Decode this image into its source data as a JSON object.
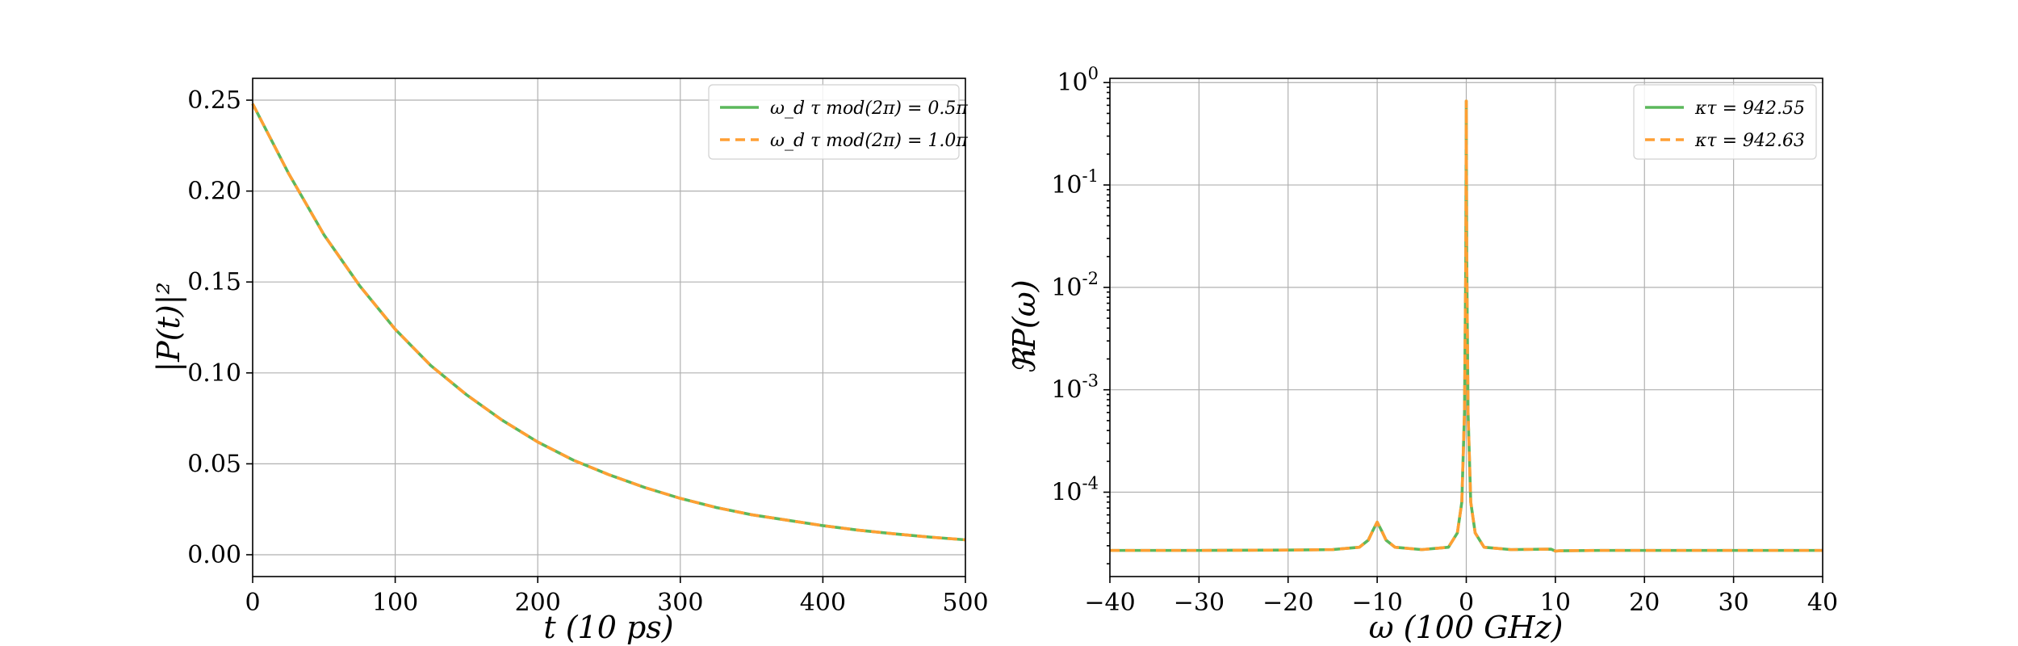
{
  "colors": {
    "series_solid": "#5cb85c",
    "series_dashed": "#ff9f33",
    "grid": "#b0b0b0"
  },
  "chart_data": [
    {
      "type": "line",
      "title": "",
      "xlabel": "t (10 ps)",
      "ylabel": "|P(t)|²",
      "xlim": [
        0,
        500
      ],
      "ylim": [
        -0.012,
        0.262
      ],
      "xticks": [
        0,
        100,
        200,
        300,
        400,
        500
      ],
      "xtick_labels": [
        "0",
        "100",
        "200",
        "300",
        "400",
        "500"
      ],
      "yticks": [
        0.0,
        0.05,
        0.1,
        0.15,
        0.2,
        0.25
      ],
      "ytick_labels": [
        "0.00",
        "0.05",
        "0.10",
        "0.15",
        "0.20",
        "0.25"
      ],
      "grid": true,
      "legend_position": "top-right",
      "series": [
        {
          "name": "ω_d τ mod(2π) = 0.5π",
          "style": "solid",
          "x": [
            0,
            25,
            50,
            75,
            100,
            125,
            150,
            175,
            200,
            225,
            250,
            275,
            300,
            325,
            350,
            375,
            400,
            425,
            450,
            475,
            500
          ],
          "y": [
            0.248,
            0.21,
            0.176,
            0.148,
            0.124,
            0.104,
            0.088,
            0.074,
            0.062,
            0.052,
            0.044,
            0.037,
            0.031,
            0.026,
            0.022,
            0.019,
            0.016,
            0.0135,
            0.0115,
            0.0097,
            0.0082
          ]
        },
        {
          "name": "ω_d τ mod(2π) = 1.0π",
          "style": "dashed",
          "x": [
            0,
            25,
            50,
            75,
            100,
            125,
            150,
            175,
            200,
            225,
            250,
            275,
            300,
            325,
            350,
            375,
            400,
            425,
            450,
            475,
            500
          ],
          "y": [
            0.248,
            0.21,
            0.176,
            0.148,
            0.124,
            0.104,
            0.088,
            0.074,
            0.062,
            0.052,
            0.044,
            0.037,
            0.031,
            0.026,
            0.022,
            0.019,
            0.016,
            0.0135,
            0.0115,
            0.0097,
            0.0082
          ]
        }
      ]
    },
    {
      "type": "line",
      "title": "",
      "xlabel": "ω (100 GHz)",
      "ylabel": "ℜP(ω)",
      "xlim": [
        -40,
        40
      ],
      "ylim": [
        1.5e-05,
        1.1
      ],
      "yscale": "log",
      "xticks": [
        -40,
        -30,
        -20,
        -10,
        0,
        10,
        20,
        30,
        40
      ],
      "xtick_labels": [
        "−40",
        "−30",
        "−20",
        "−10",
        "0",
        "10",
        "20",
        "30",
        "40"
      ],
      "yticks": [
        0.0001,
        0.001,
        0.01,
        0.1,
        1
      ],
      "ytick_labels": [
        {
          "base": "10",
          "exp": "-4"
        },
        {
          "base": "10",
          "exp": "-3"
        },
        {
          "base": "10",
          "exp": "-2"
        },
        {
          "base": "10",
          "exp": "-1"
        },
        {
          "base": "10",
          "exp": "0"
        }
      ],
      "grid": true,
      "legend_position": "top-right",
      "series": [
        {
          "name": "κτ = 942.55",
          "style": "solid",
          "x": [
            -40,
            -30,
            -20,
            -15,
            -12,
            -11,
            -10.5,
            -10,
            -9.5,
            -9,
            -8,
            -5,
            -2,
            -1,
            -0.5,
            -0.2,
            -0.05,
            0,
            0.05,
            0.2,
            0.5,
            1,
            2,
            5,
            9.5,
            10,
            10.5,
            15,
            20,
            30,
            40
          ],
          "y": [
            2.7e-05,
            2.7e-05,
            2.72e-05,
            2.75e-05,
            2.9e-05,
            3.4e-05,
            4.2e-05,
            5.1e-05,
            4.2e-05,
            3.4e-05,
            2.9e-05,
            2.75e-05,
            2.9e-05,
            4e-05,
            8e-05,
            0.0006,
            0.02,
            0.66,
            0.02,
            0.0006,
            8e-05,
            4e-05,
            2.9e-05,
            2.75e-05,
            2.78e-05,
            2.66e-05,
            2.68e-05,
            2.7e-05,
            2.7e-05,
            2.7e-05,
            2.7e-05
          ]
        },
        {
          "name": "κτ = 942.63",
          "style": "dashed",
          "x": [
            -40,
            -30,
            -20,
            -15,
            -12,
            -11,
            -10.5,
            -10,
            -9.5,
            -9,
            -8,
            -5,
            -2,
            -1,
            -0.5,
            -0.2,
            -0.05,
            0,
            0.05,
            0.2,
            0.5,
            1,
            2,
            5,
            9.5,
            10,
            10.5,
            15,
            20,
            30,
            40
          ],
          "y": [
            2.7e-05,
            2.7e-05,
            2.72e-05,
            2.75e-05,
            2.9e-05,
            3.4e-05,
            4.2e-05,
            5.1e-05,
            4.2e-05,
            3.4e-05,
            2.9e-05,
            2.75e-05,
            2.9e-05,
            4e-05,
            8e-05,
            0.0006,
            0.02,
            0.66,
            0.02,
            0.0006,
            8e-05,
            4e-05,
            2.9e-05,
            2.75e-05,
            2.78e-05,
            2.66e-05,
            2.68e-05,
            2.7e-05,
            2.7e-05,
            2.7e-05,
            2.7e-05
          ]
        }
      ]
    }
  ]
}
